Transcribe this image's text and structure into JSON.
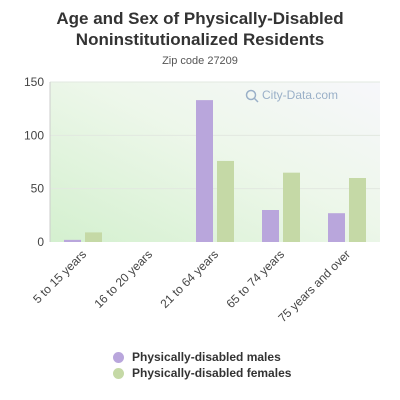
{
  "chart_data": {
    "type": "bar",
    "title": "Age and Sex of Physically-Disabled Noninstitutionalized Residents",
    "subtitle": "Zip code 27209",
    "watermark": "City-Data.com",
    "categories": [
      "5 to 15 years",
      "16 to 20 years",
      "21 to 64 years",
      "65 to 74 years",
      "75 years and over"
    ],
    "series": [
      {
        "name": "Physically-disabled males",
        "color": "#b9a6dc",
        "values": [
          2,
          0,
          133,
          30,
          27
        ]
      },
      {
        "name": "Physically-disabled females",
        "color": "#c5d9a6",
        "values": [
          9,
          0,
          76,
          65,
          60
        ]
      }
    ],
    "y_ticks": [
      0,
      50,
      100,
      150
    ],
    "ylim": [
      0,
      150
    ],
    "grid": true,
    "legend_position": "bottom"
  }
}
